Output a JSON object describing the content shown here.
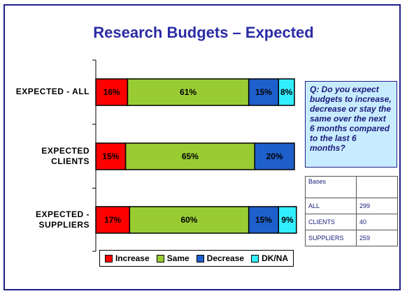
{
  "chart_data": {
    "type": "bar",
    "orientation": "horizontal",
    "stacked": true,
    "title": "Research Budgets – Expected",
    "categories": [
      "EXPECTED - ALL",
      "EXPECTED CLIENTS",
      "EXPECTED - SUPPLIERS"
    ],
    "category_lines": [
      [
        "EXPECTED - ALL"
      ],
      [
        "EXPECTED",
        "CLIENTS"
      ],
      [
        "EXPECTED -",
        "SUPPLIERS"
      ]
    ],
    "series": [
      {
        "name": "Increase",
        "color": "#ff0000",
        "values": [
          16,
          15,
          17
        ],
        "labels": [
          "16%",
          "15%",
          "17%"
        ]
      },
      {
        "name": "Same",
        "color": "#99cc33",
        "values": [
          61,
          65,
          60
        ],
        "labels": [
          "61%",
          "65%",
          "60%"
        ]
      },
      {
        "name": "Decrease",
        "color": "#1f5fcc",
        "values": [
          15,
          20,
          15
        ],
        "labels": [
          "15%",
          "20%",
          "15%"
        ]
      },
      {
        "name": "DK/NA",
        "color": "#33eeff",
        "values": [
          8,
          0,
          9
        ],
        "labels": [
          "8%",
          "",
          "9%"
        ]
      }
    ],
    "xlim": [
      0,
      100
    ],
    "grid": false,
    "legend_position": "bottom"
  },
  "question": "Q: Do you expect budgets to increase, decrease or stay the same over the next 6 months compared to the last 6 months?",
  "bases": {
    "header": "Bases",
    "rows": [
      {
        "label": "ALL",
        "value": "299"
      },
      {
        "label": "CLIENTS",
        "value": "40"
      },
      {
        "label": "SUPPLIERS",
        "value": "259"
      }
    ]
  }
}
